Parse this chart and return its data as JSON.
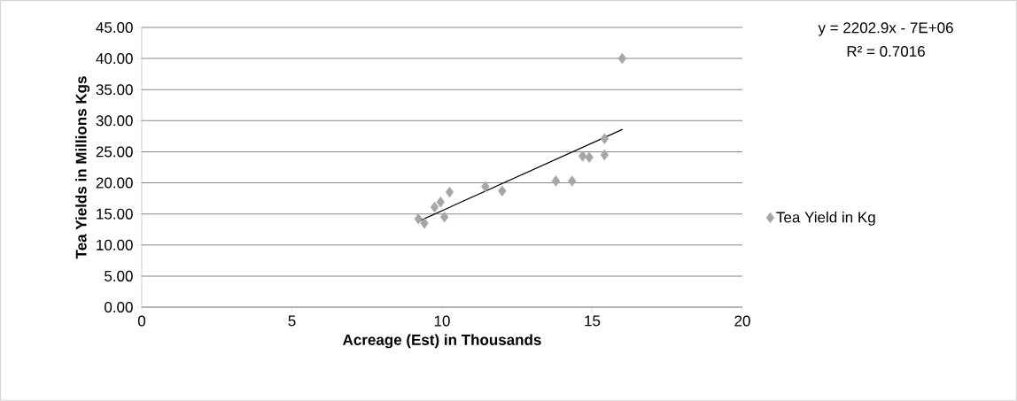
{
  "chart_data": {
    "type": "scatter",
    "xlabel": "Acreage (Est) in Thousands",
    "ylabel": "Tea Yields in Millions Kgs",
    "xlim": [
      0,
      20
    ],
    "xticks": [
      0,
      5,
      10,
      15,
      20
    ],
    "ylim": [
      0,
      45
    ],
    "yticks": [
      {
        "value": 0,
        "label": "0.00"
      },
      {
        "value": 5,
        "label": "5.00"
      },
      {
        "value": 10,
        "label": "10.00"
      },
      {
        "value": 15,
        "label": "15.00"
      },
      {
        "value": 20,
        "label": "20.00"
      },
      {
        "value": 25,
        "label": "25.00"
      },
      {
        "value": 30,
        "label": "30.00"
      },
      {
        "value": 35,
        "label": "35.00"
      },
      {
        "value": 40,
        "label": "40.00"
      },
      {
        "value": 45,
        "label": "45.00"
      }
    ],
    "grid": "y",
    "legend": "right",
    "marker": "diamond",
    "annotations": [
      "y = 2202.9x - 7E+06",
      "R² = 0.7016"
    ],
    "series": [
      {
        "name": "Tea Yield in Kg",
        "color": "#a6a6a6",
        "x": [
          9.21,
          9.41,
          10.08,
          9.75,
          9.95,
          10.25,
          11.44,
          12.0,
          13.79,
          14.33,
          14.68,
          14.9,
          15.41,
          15.41,
          16.0
        ],
        "values": [
          14.2,
          13.5,
          14.5,
          16.1,
          16.9,
          18.5,
          19.4,
          18.7,
          20.3,
          20.3,
          24.3,
          24.1,
          24.5,
          27.1,
          40.0
        ]
      },
      {
        "type": "line",
        "color": "#000000",
        "marker": "none",
        "x": [
          9.21,
          16.01
        ],
        "values": [
          13.8,
          28.6
        ]
      }
    ]
  }
}
